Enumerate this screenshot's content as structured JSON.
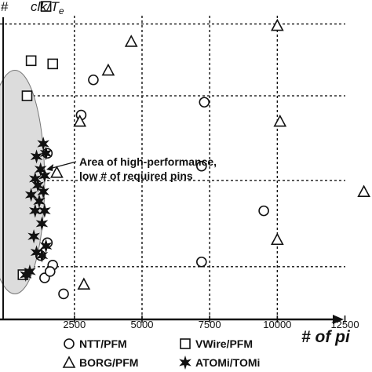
{
  "chart_data": {
    "type": "scatter",
    "xlabel": "# of pi",
    "ylabel_left": ".#",
    "ylabel": "clk/T",
    "ylabel_subscript": "e",
    "xlim": [
      -250,
      13500
    ],
    "x_ticks": [
      2500,
      5000,
      7500,
      10000,
      12500
    ],
    "x_tick_labels": [
      "2500",
      "5000",
      "7500",
      "10000",
      "12500"
    ],
    "ylim": [
      0,
      100
    ],
    "y_gridlines": [
      16.5,
      43.5,
      70,
      92.5
    ],
    "x_gridlines": [
      2500,
      5000,
      7500,
      10000
    ],
    "grid": true,
    "legend_position": "bottom",
    "annotation": {
      "lines": [
        "Area of high-performance,",
        "low # of required pins"
      ],
      "ellipse_center": [
        300,
        43
      ],
      "ellipse_radius": [
        1100,
        35
      ]
    },
    "series": [
      {
        "name": "NTT/PFM",
        "marker": "circle",
        "points": [
          [
            3200,
            75
          ],
          [
            2750,
            64
          ],
          [
            1500,
            52
          ],
          [
            7300,
            68
          ],
          [
            7200,
            48
          ],
          [
            9500,
            34
          ],
          [
            7200,
            18
          ],
          [
            1700,
            17
          ],
          [
            1400,
            13
          ],
          [
            1600,
            15
          ],
          [
            1250,
            20
          ],
          [
            1500,
            24
          ],
          [
            2100,
            8
          ]
        ]
      },
      {
        "name": "VWire/PFM",
        "marker": "square",
        "points": [
          [
            1450,
            98
          ],
          [
            900,
            81
          ],
          [
            1700,
            80
          ],
          [
            750,
            70
          ],
          [
            600,
            14
          ]
        ]
      },
      {
        "name": "BORG/PFM",
        "marker": "triangle",
        "points": [
          [
            10000,
            92
          ],
          [
            4600,
            87
          ],
          [
            3750,
            78
          ],
          [
            2700,
            62
          ],
          [
            10100,
            62
          ],
          [
            1850,
            46
          ],
          [
            13200,
            40
          ],
          [
            10000,
            25
          ],
          [
            2850,
            11
          ]
        ]
      },
      {
        "name": "ATOMi/TOMi",
        "marker": "star",
        "points": [
          [
            1350,
            55
          ],
          [
            1450,
            52
          ],
          [
            1100,
            51
          ],
          [
            1250,
            47
          ],
          [
            1050,
            44
          ],
          [
            1400,
            45
          ],
          [
            1150,
            42
          ],
          [
            1350,
            40
          ],
          [
            900,
            39
          ],
          [
            1200,
            37
          ],
          [
            1050,
            34
          ],
          [
            1400,
            34
          ],
          [
            1300,
            30
          ],
          [
            1000,
            26
          ],
          [
            1450,
            23
          ],
          [
            1100,
            21
          ],
          [
            1300,
            20
          ],
          [
            850,
            15
          ],
          [
            700,
            14
          ]
        ]
      }
    ]
  }
}
